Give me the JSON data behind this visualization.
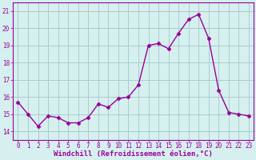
{
  "x": [
    0,
    1,
    2,
    3,
    4,
    5,
    6,
    7,
    8,
    9,
    10,
    11,
    12,
    13,
    14,
    15,
    16,
    17,
    18,
    19,
    20,
    21,
    22,
    23
  ],
  "y": [
    15.7,
    15.0,
    14.3,
    14.9,
    14.8,
    14.5,
    14.5,
    14.8,
    15.6,
    15.4,
    15.9,
    16.0,
    16.7,
    19.0,
    19.1,
    18.8,
    19.7,
    20.5,
    20.8,
    19.4,
    16.4,
    15.1,
    15.0,
    14.9
  ],
  "line_color": "#990099",
  "marker": "D",
  "marker_size": 2.5,
  "bg_color": "#d6f0f0",
  "grid_color": "#aacccc",
  "xlabel": "Windchill (Refroidissement éolien,°C)",
  "xlabel_color": "#990099",
  "tick_color": "#990099",
  "label_color": "#990099",
  "ylim": [
    13.5,
    21.5
  ],
  "xlim": [
    -0.5,
    23.5
  ],
  "yticks": [
    14,
    15,
    16,
    17,
    18,
    19,
    20,
    21
  ],
  "xticks": [
    0,
    1,
    2,
    3,
    4,
    5,
    6,
    7,
    8,
    9,
    10,
    11,
    12,
    13,
    14,
    15,
    16,
    17,
    18,
    19,
    20,
    21,
    22,
    23
  ],
  "tick_fontsize": 5.5,
  "xlabel_fontsize": 6.5,
  "linewidth": 1.0
}
